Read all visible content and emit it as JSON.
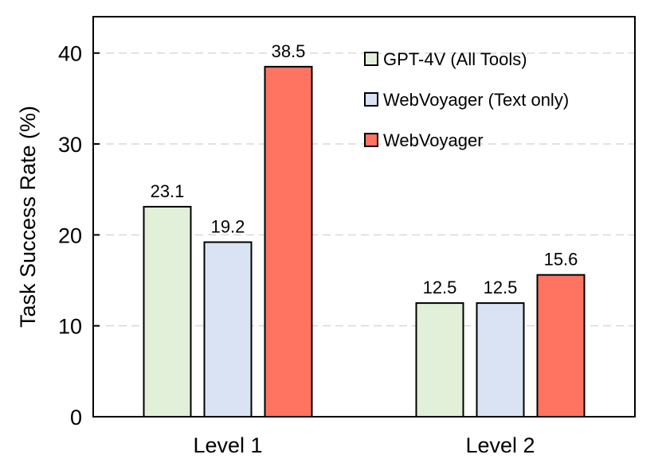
{
  "chart_data": {
    "type": "bar",
    "title": "",
    "xlabel": "",
    "ylabel": "Task Success Rate (%)",
    "categories": [
      "Level 1",
      "Level 2"
    ],
    "series": [
      {
        "name": "GPT-4V (All Tools)",
        "values": [
          23.1,
          12.5
        ],
        "value_labels": [
          "23.1",
          "12.5"
        ],
        "color": "#e2efd9"
      },
      {
        "name": "WebVoyager (Text only)",
        "values": [
          19.2,
          12.5
        ],
        "value_labels": [
          "19.2",
          "12.5"
        ],
        "color": "#dae3f3"
      },
      {
        "name": "WebVoyager",
        "values": [
          38.5,
          15.6
        ],
        "value_labels": [
          "38.5",
          "15.6"
        ],
        "color": "#ff7461"
      }
    ],
    "ylim": [
      0,
      44
    ],
    "yticks": [
      0,
      10,
      20,
      30,
      40
    ],
    "ytick_labels": [
      "0",
      "10",
      "20",
      "30",
      "40"
    ],
    "grid": "horizontal dashed",
    "legend_position": "top-right"
  }
}
